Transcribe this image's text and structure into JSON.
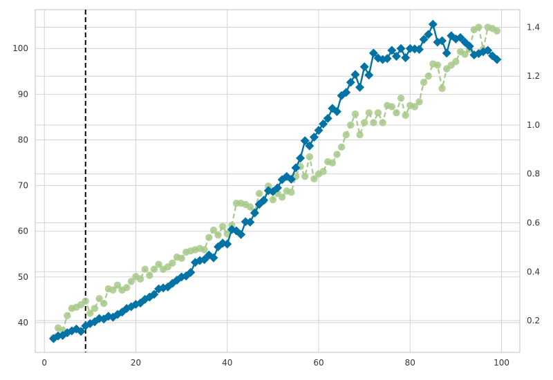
{
  "chart_data": {
    "type": "line",
    "title": "",
    "xlabel": "",
    "ylabel": "",
    "y2label": "",
    "grid": true,
    "xlim": [
      -2,
      104
    ],
    "ylim": [
      33.5,
      108.5
    ],
    "y2lim": [
      0.07,
      1.472
    ],
    "xticks": [
      0,
      20,
      40,
      60,
      80,
      100
    ],
    "yticks": [
      40,
      50,
      60,
      70,
      80,
      90,
      100
    ],
    "y2ticks": [
      0.2,
      0.4,
      0.6,
      0.8,
      1.0,
      1.2,
      1.4
    ],
    "y2tick_labels": [
      "0.2",
      "0.4",
      "0.6",
      "0.8",
      "1.0",
      "1.2",
      "1.4"
    ],
    "vline_x": 9,
    "colors": {
      "primary": "#0072a3",
      "secondary": "#a8c98a",
      "vline": "#000000",
      "grid": "#d2d2d2",
      "spine": "#cccccc"
    },
    "series": [
      {
        "axis": "left",
        "marker": "diamond",
        "line_style": "solid",
        "x": [
          2,
          3,
          4,
          5,
          6,
          7,
          8,
          9,
          10,
          11,
          12,
          13,
          14,
          15,
          16,
          17,
          18,
          19,
          20,
          21,
          22,
          23,
          24,
          25,
          26,
          27,
          28,
          29,
          30,
          31,
          32,
          33,
          34,
          35,
          36,
          37,
          38,
          39,
          40,
          41,
          42,
          43,
          44,
          45,
          46,
          47,
          48,
          49,
          50,
          51,
          52,
          53,
          54,
          55,
          56,
          57,
          58,
          59,
          60,
          61,
          62,
          63,
          64,
          65,
          66,
          67,
          68,
          69,
          70,
          71,
          72,
          73,
          74,
          75,
          76,
          77,
          78,
          79,
          80,
          81,
          82,
          83,
          84,
          85,
          86,
          87,
          88,
          89,
          90,
          91,
          92,
          93,
          94,
          95,
          96,
          97,
          98,
          99
        ],
        "y": [
          36.5,
          37.1,
          37.2,
          37.8,
          38.2,
          38.6,
          38.1,
          39.3,
          39.8,
          40.2,
          40.9,
          40.8,
          41.4,
          41.2,
          41.8,
          42.3,
          43.1,
          43.5,
          44.0,
          44.3,
          45.1,
          45.6,
          46.2,
          47.4,
          47.6,
          47.8,
          48.6,
          49.3,
          50.0,
          50.2,
          51.0,
          53.2,
          53.6,
          53.8,
          54.8,
          54.2,
          56.6,
          57.4,
          57.2,
          60.4,
          60.1,
          59.3,
          62.1,
          62.0,
          64.0,
          65.9,
          66.8,
          68.9,
          68.7,
          69.5,
          71.3,
          72.0,
          71.4,
          73.9,
          76.0,
          79.8,
          78.7,
          80.6,
          82.1,
          83.5,
          84.7,
          86.9,
          86.2,
          89.7,
          90.4,
          92.6,
          94.3,
          91.5,
          96.0,
          94.2,
          99.0,
          97.9,
          97.6,
          97.8,
          99.6,
          98.3,
          100.0,
          98.0,
          100.0,
          99.9,
          99.8,
          102.0,
          103.1,
          105.3,
          101.4,
          101.7,
          99.0,
          102.8,
          102.1,
          102.4,
          101.4,
          100.5,
          98.6,
          98.9,
          99.3,
          99.6,
          98.4,
          97.6
        ]
      },
      {
        "axis": "right",
        "marker": "circle",
        "line_style": "dashed",
        "x": [
          2,
          3,
          4,
          5,
          6,
          7,
          8,
          9,
          10,
          11,
          12,
          13,
          14,
          15,
          16,
          17,
          18,
          19,
          20,
          21,
          22,
          23,
          24,
          25,
          26,
          27,
          28,
          29,
          30,
          31,
          32,
          33,
          34,
          35,
          36,
          37,
          38,
          39,
          40,
          41,
          42,
          43,
          44,
          45,
          46,
          47,
          48,
          49,
          50,
          51,
          52,
          53,
          54,
          55,
          56,
          57,
          58,
          59,
          60,
          61,
          62,
          63,
          64,
          65,
          66,
          67,
          68,
          69,
          70,
          71,
          72,
          73,
          74,
          75,
          76,
          77,
          78,
          79,
          80,
          81,
          82,
          83,
          84,
          85,
          86,
          87,
          88,
          89,
          90,
          91,
          92,
          93,
          94,
          95,
          96,
          97,
          98,
          99
        ],
        "y": [
          0.13,
          0.17,
          0.16,
          0.22,
          0.25,
          0.255,
          0.265,
          0.28,
          0.23,
          0.25,
          0.29,
          0.27,
          0.33,
          0.325,
          0.345,
          0.325,
          0.335,
          0.36,
          0.38,
          0.37,
          0.41,
          0.385,
          0.41,
          0.43,
          0.41,
          0.42,
          0.435,
          0.46,
          0.455,
          0.48,
          0.485,
          0.49,
          0.495,
          0.49,
          0.54,
          0.57,
          0.55,
          0.585,
          0.555,
          0.59,
          0.68,
          0.68,
          0.675,
          0.665,
          0.645,
          0.72,
          0.69,
          0.75,
          0.695,
          0.72,
          0.705,
          0.73,
          0.725,
          0.79,
          0.83,
          0.79,
          0.87,
          0.78,
          0.8,
          0.81,
          0.85,
          0.845,
          0.88,
          0.91,
          0.96,
          1.0,
          1.045,
          0.96,
          1.01,
          1.05,
          1.01,
          1.05,
          1.01,
          1.08,
          1.075,
          1.05,
          1.11,
          1.04,
          1.08,
          1.075,
          1.095,
          1.175,
          1.2,
          1.25,
          1.245,
          1.15,
          1.23,
          1.245,
          1.26,
          1.3,
          1.29,
          1.31,
          1.39,
          1.4,
          1.31,
          1.4,
          1.395,
          1.385
        ]
      }
    ]
  }
}
